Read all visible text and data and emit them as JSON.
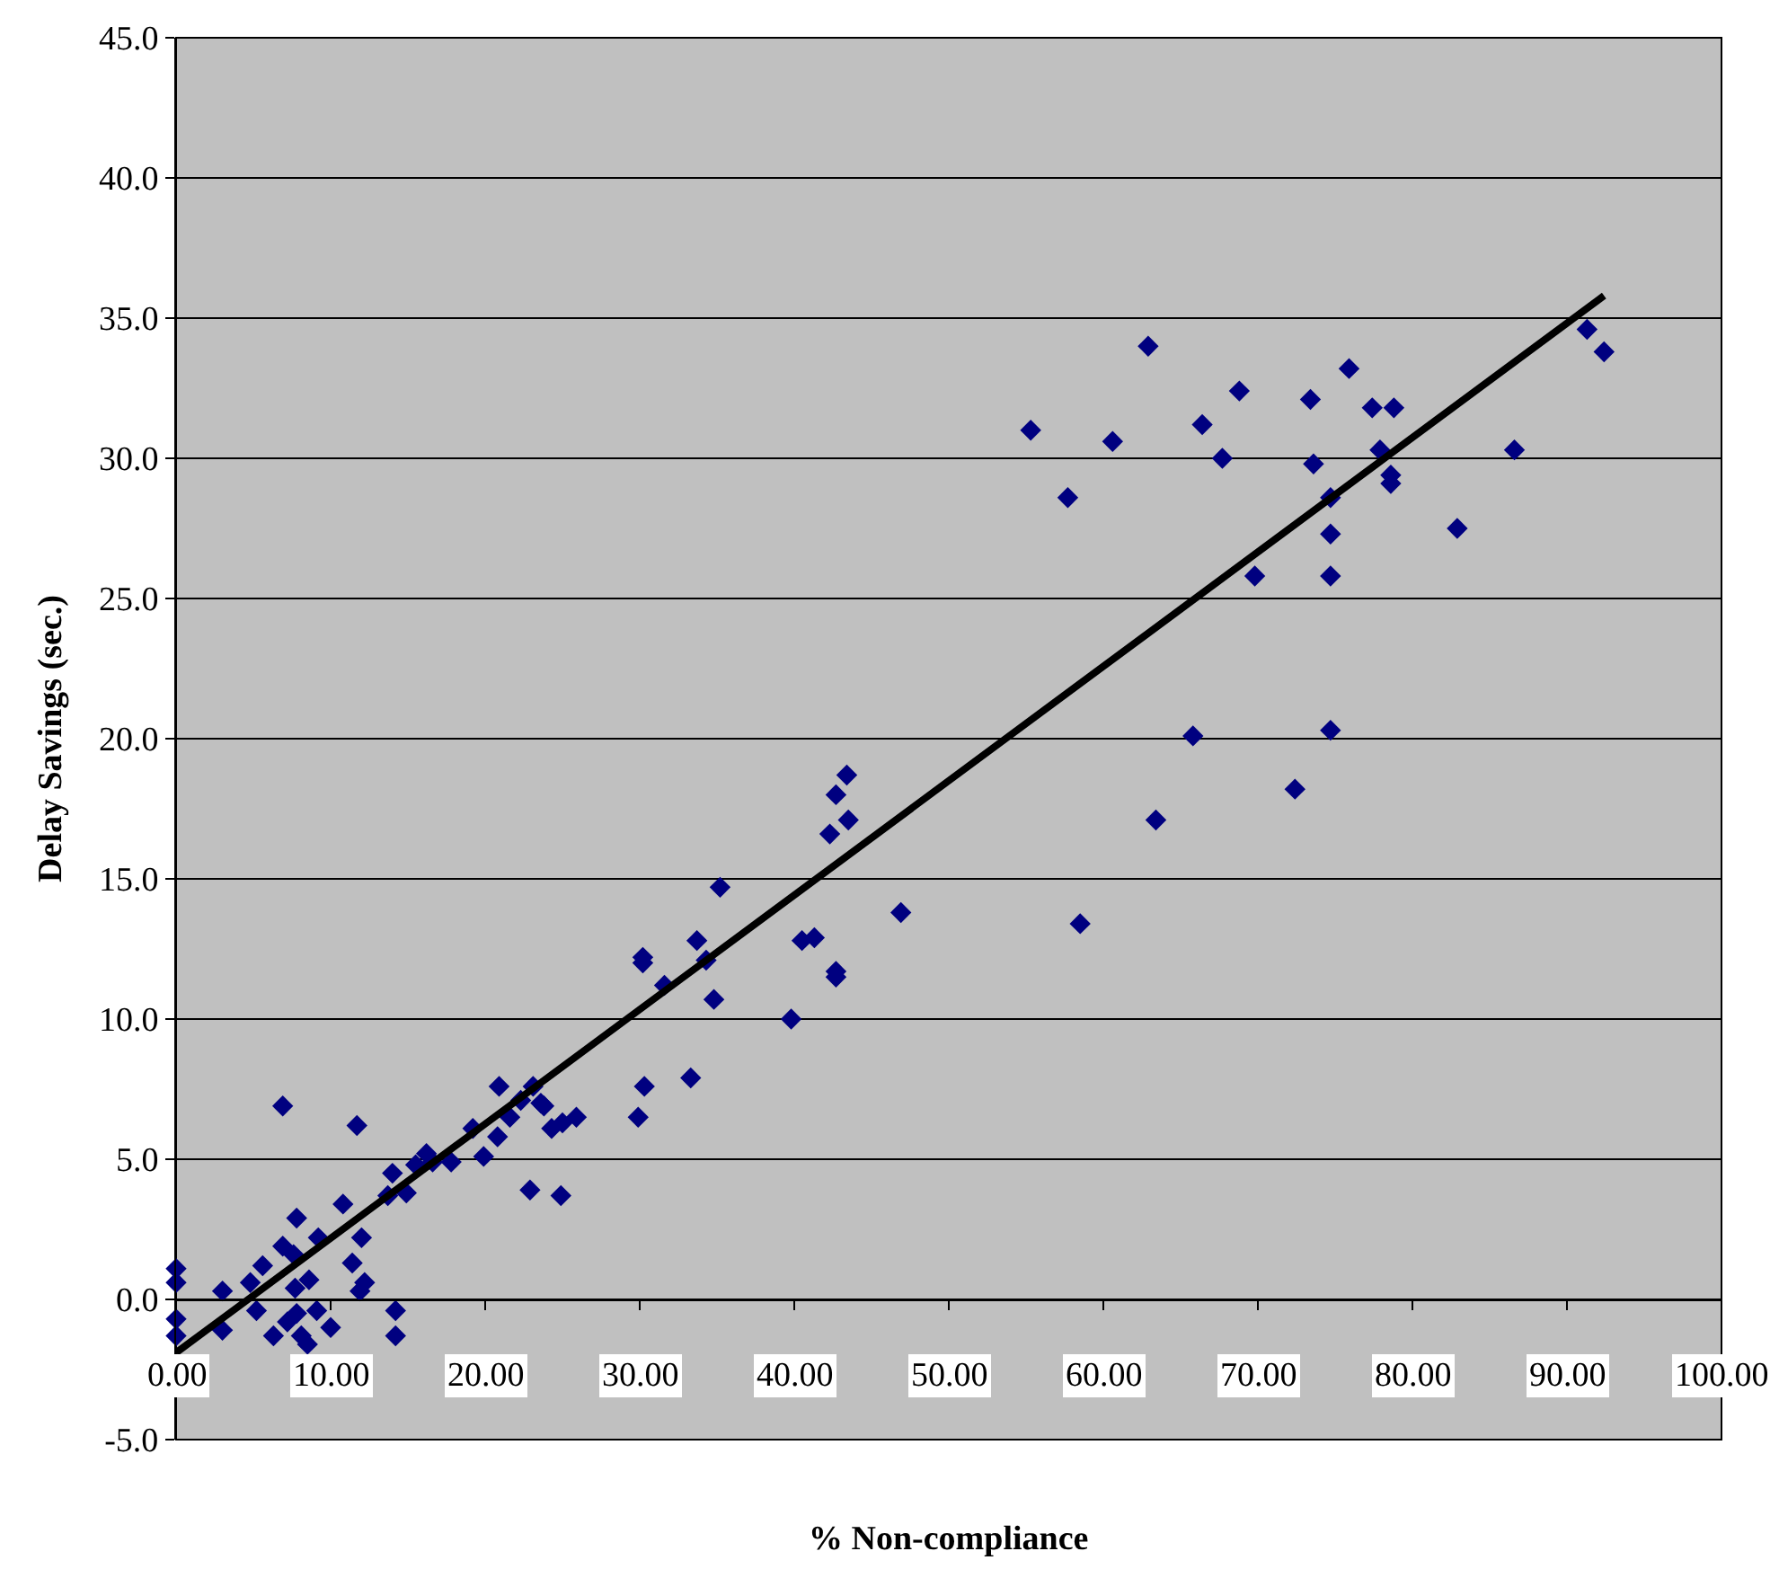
{
  "chart_data": {
    "type": "scatter",
    "xlabel": "% Non-compliance",
    "ylabel": "Delay Savings (sec.)",
    "xlim": [
      0,
      100
    ],
    "ylim": [
      -5,
      45
    ],
    "xticks": [
      {
        "value": 0,
        "label": "0.00"
      },
      {
        "value": 10,
        "label": "10.00"
      },
      {
        "value": 20,
        "label": "20.00"
      },
      {
        "value": 30,
        "label": "30.00"
      },
      {
        "value": 40,
        "label": "40.00"
      },
      {
        "value": 50,
        "label": "50.00"
      },
      {
        "value": 60,
        "label": "60.00"
      },
      {
        "value": 70,
        "label": "70.00"
      },
      {
        "value": 80,
        "label": "80.00"
      },
      {
        "value": 90,
        "label": "90.00"
      },
      {
        "value": 100,
        "label": "100.00"
      }
    ],
    "yticks": [
      {
        "value": -5,
        "label": "-5.0"
      },
      {
        "value": 0,
        "label": "0.0"
      },
      {
        "value": 5,
        "label": "5.0"
      },
      {
        "value": 10,
        "label": "10.0"
      },
      {
        "value": 15,
        "label": "15.0"
      },
      {
        "value": 20,
        "label": "20.0"
      },
      {
        "value": 25,
        "label": "25.0"
      },
      {
        "value": 30,
        "label": "30.0"
      },
      {
        "value": 35,
        "label": "35.0"
      },
      {
        "value": 40,
        "label": "40.0"
      },
      {
        "value": 45,
        "label": "45.0"
      }
    ],
    "grid": "y",
    "marker": "diamond",
    "series": [
      {
        "color": "#000080",
        "x": [
          0,
          0,
          0,
          0,
          3.0,
          3.0,
          4.8,
          5.2,
          5.6,
          6.3,
          6.9,
          6.9,
          7.2,
          7.7,
          7.6,
          7.8,
          7.8,
          8.1,
          8.5,
          8.6,
          9.1,
          9.2,
          10.0,
          10.8,
          11.4,
          11.7,
          11.9,
          12.0,
          12.2,
          14.0,
          13.7,
          14.2,
          14.2,
          14.9,
          15.5,
          16.2,
          16.6,
          17.8,
          19.2,
          19.9,
          20.8,
          20.9,
          21.6,
          22.3,
          23.1,
          22.9,
          23.6,
          23.8,
          24.3,
          25.0,
          24.9,
          25.9,
          29.9,
          30.3,
          30.2,
          30.2,
          31.6,
          33.3,
          33.7,
          34.3,
          34.8,
          35.2,
          39.8,
          40.5,
          41.3,
          42.3,
          42.7,
          42.7,
          42.7,
          43.4,
          43.5,
          46.9,
          55.3,
          57.7,
          58.5,
          60.6,
          62.9,
          63.4,
          65.8,
          66.4,
          67.7,
          68.8,
          69.8,
          72.4,
          73.4,
          73.6,
          74.7,
          74.7,
          74.7,
          74.7,
          75.9,
          77.4,
          77.9,
          78.6,
          78.6,
          78.8,
          82.9,
          86.6,
          91.3,
          92.4
        ],
        "values": [
          1.1,
          0.6,
          -0.7,
          -1.3,
          0.3,
          -1.1,
          0.6,
          -0.4,
          1.2,
          -1.3,
          1.9,
          6.9,
          -0.8,
          0.4,
          1.6,
          2.9,
          -0.5,
          -1.3,
          -1.6,
          0.7,
          -0.4,
          2.2,
          -1.0,
          3.4,
          1.3,
          6.2,
          0.3,
          2.2,
          0.6,
          4.5,
          3.7,
          -0.4,
          -1.3,
          3.8,
          4.8,
          5.2,
          4.9,
          4.9,
          6.1,
          5.1,
          5.8,
          7.6,
          6.5,
          7.1,
          7.6,
          3.9,
          7.0,
          6.9,
          6.1,
          6.3,
          3.7,
          6.5,
          6.5,
          7.6,
          12.2,
          12.0,
          11.2,
          7.9,
          12.8,
          12.1,
          10.7,
          14.7,
          10.0,
          12.8,
          12.9,
          16.6,
          18.0,
          11.7,
          11.5,
          18.7,
          17.1,
          13.8,
          31.0,
          28.6,
          13.4,
          30.6,
          34.0,
          17.1,
          20.1,
          31.2,
          30.0,
          32.4,
          25.8,
          18.2,
          32.1,
          29.8,
          28.6,
          27.3,
          25.8,
          20.3,
          33.2,
          31.8,
          30.3,
          29.1,
          29.4,
          31.8,
          27.5,
          30.3,
          34.6,
          33.8
        ]
      },
      {
        "type": "line",
        "color": "#000000",
        "marker": "none",
        "line_style": "solid",
        "x": [
          0,
          92.4
        ],
        "values": [
          -1.9,
          35.8
        ]
      }
    ]
  }
}
